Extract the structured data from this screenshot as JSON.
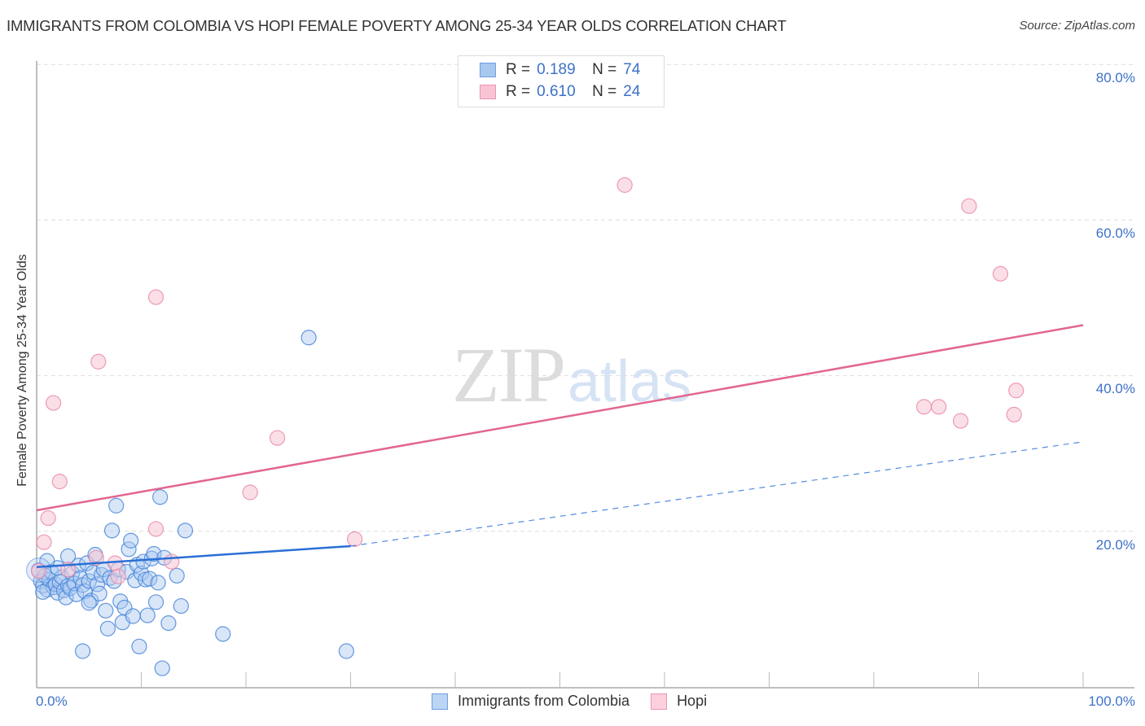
{
  "header": {
    "title": "IMMIGRANTS FROM COLOMBIA VS HOPI FEMALE POVERTY AMONG 25-34 YEAR OLDS CORRELATION CHART",
    "source": "Source: ZipAtlas.com"
  },
  "watermark": {
    "zip": "ZIP",
    "atlas": "atlas"
  },
  "legend_top": {
    "rows": [
      {
        "r_label": "R =",
        "r_value": "0.189",
        "n_label": "N =",
        "n_value": "74",
        "color": "#a9c8f0",
        "border": "#6d9ee0"
      },
      {
        "r_label": "R =",
        "r_value": "0.610",
        "n_label": "N =",
        "n_value": "24",
        "color": "#f8c4d4",
        "border": "#ee95b0"
      }
    ]
  },
  "legend_bottom": {
    "items": [
      {
        "label": "Immigrants from Colombia",
        "color": "#bcd5f5",
        "border": "#6d9ee0"
      },
      {
        "label": "Hopi",
        "color": "#fbd0dc",
        "border": "#ee95b0"
      }
    ]
  },
  "axes": {
    "ylabel": "Female Poverty Among 25-34 Year Olds",
    "y_ticks": [
      "80.0%",
      "60.0%",
      "40.0%",
      "20.0%"
    ],
    "x_ticks": [
      "0.0%",
      "100.0%"
    ]
  },
  "colors": {
    "blue_fill": "#a9c8f0",
    "blue_stroke": "#4a86db",
    "blue_line": "#2a6fd6",
    "pink_fill": "#f8c4d4",
    "pink_stroke": "#ea8aa8",
    "pink_line": "#e2668f",
    "tick_text": "#3d72c8",
    "grid": "#dddddd"
  },
  "chart_data": {
    "type": "scatter",
    "title": "IMMIGRANTS FROM COLOMBIA VS HOPI FEMALE POVERTY AMONG 25-34 YEAR OLDS CORRELATION CHART",
    "xlabel": "",
    "ylabel": "Female Poverty Among 25-34 Year Olds",
    "xlim": [
      0,
      100
    ],
    "ylim": [
      0,
      85
    ],
    "x_tick_labels": [
      "0.0%",
      "100.0%"
    ],
    "y_tick_labels": [
      "20.0%",
      "40.0%",
      "60.0%",
      "80.0%"
    ],
    "y_ticks": [
      20,
      40,
      60,
      80
    ],
    "grid": true,
    "legend_position": "bottom",
    "series": [
      {
        "name": "Immigrants from Colombia",
        "R": 0.189,
        "N": 74,
        "trendline": {
          "x": [
            0,
            30
          ],
          "y": [
            15.4,
            18.1
          ],
          "dashed_extension": {
            "x": [
              30,
              100
            ],
            "y": [
              18.1,
              31.5
            ]
          }
        },
        "points": [
          [
            0.2,
            15.0
          ],
          [
            0.4,
            13.6
          ],
          [
            0.6,
            13.0
          ],
          [
            0.8,
            14.3
          ],
          [
            1.0,
            12.5
          ],
          [
            1.2,
            13.8
          ],
          [
            1.4,
            14.8
          ],
          [
            1.6,
            12.8
          ],
          [
            1.8,
            13.2
          ],
          [
            2.0,
            12.1
          ],
          [
            2.2,
            13.5
          ],
          [
            2.4,
            14.1
          ],
          [
            2.6,
            12.4
          ],
          [
            2.8,
            11.5
          ],
          [
            3.0,
            13.0
          ],
          [
            3.2,
            12.7
          ],
          [
            3.4,
            14.6
          ],
          [
            3.6,
            13.3
          ],
          [
            3.8,
            11.9
          ],
          [
            4.0,
            15.6
          ],
          [
            4.2,
            14.0
          ],
          [
            4.4,
            13.1
          ],
          [
            4.6,
            12.3
          ],
          [
            4.8,
            15.9
          ],
          [
            5.0,
            13.6
          ],
          [
            5.2,
            11.1
          ],
          [
            5.4,
            14.7
          ],
          [
            5.6,
            17.0
          ],
          [
            5.8,
            13.2
          ],
          [
            6.0,
            12.0
          ],
          [
            6.2,
            14.4
          ],
          [
            6.4,
            15.1
          ],
          [
            6.6,
            9.8
          ],
          [
            6.8,
            7.5
          ],
          [
            7.0,
            14.0
          ],
          [
            7.2,
            20.1
          ],
          [
            7.4,
            13.6
          ],
          [
            7.6,
            23.3
          ],
          [
            7.8,
            15.1
          ],
          [
            8.0,
            11.0
          ],
          [
            8.2,
            8.3
          ],
          [
            8.4,
            10.2
          ],
          [
            8.6,
            14.8
          ],
          [
            8.8,
            17.7
          ],
          [
            9.0,
            18.8
          ],
          [
            9.2,
            9.1
          ],
          [
            9.4,
            13.7
          ],
          [
            9.6,
            15.7
          ],
          [
            9.8,
            5.2
          ],
          [
            10.0,
            14.6
          ],
          [
            10.2,
            16.1
          ],
          [
            10.4,
            13.8
          ],
          [
            10.6,
            9.2
          ],
          [
            10.8,
            13.9
          ],
          [
            11.0,
            16.5
          ],
          [
            11.2,
            17.1
          ],
          [
            11.4,
            10.9
          ],
          [
            11.6,
            13.4
          ],
          [
            11.8,
            24.4
          ],
          [
            12.0,
            2.4
          ],
          [
            12.2,
            16.6
          ],
          [
            12.6,
            8.2
          ],
          [
            13.4,
            14.3
          ],
          [
            13.8,
            10.4
          ],
          [
            14.2,
            20.1
          ],
          [
            17.8,
            6.8
          ],
          [
            26.0,
            44.9
          ],
          [
            29.6,
            4.6
          ],
          [
            4.4,
            4.6
          ],
          [
            3.0,
            16.8
          ],
          [
            2.0,
            15.3
          ],
          [
            1.0,
            16.2
          ],
          [
            0.6,
            12.2
          ],
          [
            5.0,
            10.8
          ]
        ]
      },
      {
        "name": "Hopi",
        "R": 0.61,
        "N": 24,
        "trendline": {
          "x": [
            0,
            100
          ],
          "y": [
            22.7,
            46.5
          ]
        },
        "points": [
          [
            56.2,
            64.5
          ],
          [
            89.1,
            61.8
          ],
          [
            92.1,
            53.1
          ],
          [
            11.4,
            50.1
          ],
          [
            5.9,
            41.8
          ],
          [
            1.6,
            36.5
          ],
          [
            84.8,
            36.0
          ],
          [
            86.2,
            36.0
          ],
          [
            88.3,
            34.2
          ],
          [
            93.6,
            38.1
          ],
          [
            93.4,
            35.0
          ],
          [
            23.0,
            32.0
          ],
          [
            2.2,
            26.4
          ],
          [
            20.4,
            25.0
          ],
          [
            1.1,
            21.7
          ],
          [
            0.7,
            18.6
          ],
          [
            30.4,
            19.0
          ],
          [
            11.4,
            20.3
          ],
          [
            12.9,
            16.1
          ],
          [
            7.5,
            15.9
          ],
          [
            5.7,
            16.6
          ],
          [
            3.0,
            15.1
          ],
          [
            0.2,
            14.9
          ],
          [
            7.8,
            14.2
          ]
        ]
      }
    ]
  }
}
